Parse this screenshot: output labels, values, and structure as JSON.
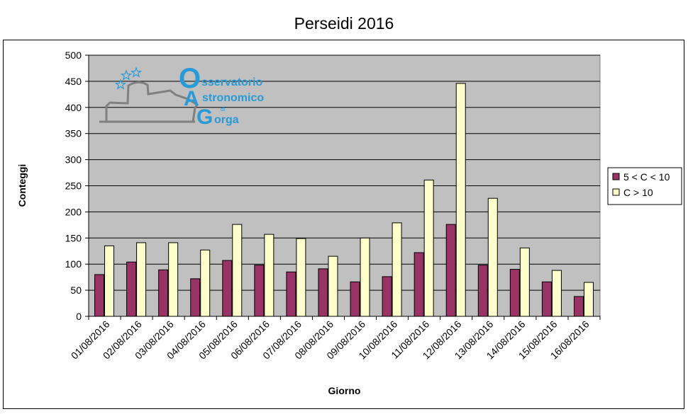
{
  "chart_data": {
    "type": "bar",
    "title": "Perseidi 2016",
    "xlabel": "Giorno",
    "ylabel": "Conteggi",
    "ylim": [
      0,
      500
    ],
    "yticks": [
      0,
      50,
      100,
      150,
      200,
      250,
      300,
      350,
      400,
      450,
      500
    ],
    "grid": true,
    "legend_position": "right",
    "categories": [
      "01/08/2016",
      "02/08/2016",
      "03/08/2016",
      "04/08/2016",
      "05/08/2016",
      "06/08/2016",
      "07/08/2016",
      "08/08/2016",
      "09/08/2016",
      "10/08/2016",
      "11/08/2016",
      "12/08/2016",
      "13/08/2016",
      "14/08/2016",
      "15/08/2016",
      "16/08/2016"
    ],
    "series": [
      {
        "name": "5 < C < 10",
        "color": "#993366",
        "values": [
          80,
          104,
          89,
          72,
          107,
          98,
          85,
          91,
          66,
          76,
          122,
          176,
          98,
          90,
          66,
          38
        ]
      },
      {
        "name": "C > 10",
        "color": "#ffffcc",
        "values": [
          135,
          141,
          141,
          127,
          176,
          157,
          149,
          115,
          150,
          179,
          261,
          446,
          226,
          131,
          88,
          65
        ]
      }
    ],
    "plot_background": "#c0c0c0"
  },
  "logo": {
    "name": "Osservatorio Astronomico di Gorga",
    "line1_initial": "O",
    "line1_rest": "sservatorio",
    "line2_initial": "A",
    "line2_rest": "stronomico",
    "line3_small": "di",
    "line3_initial": "G",
    "line3_rest": "orga",
    "color": "#2a9ad6"
  }
}
